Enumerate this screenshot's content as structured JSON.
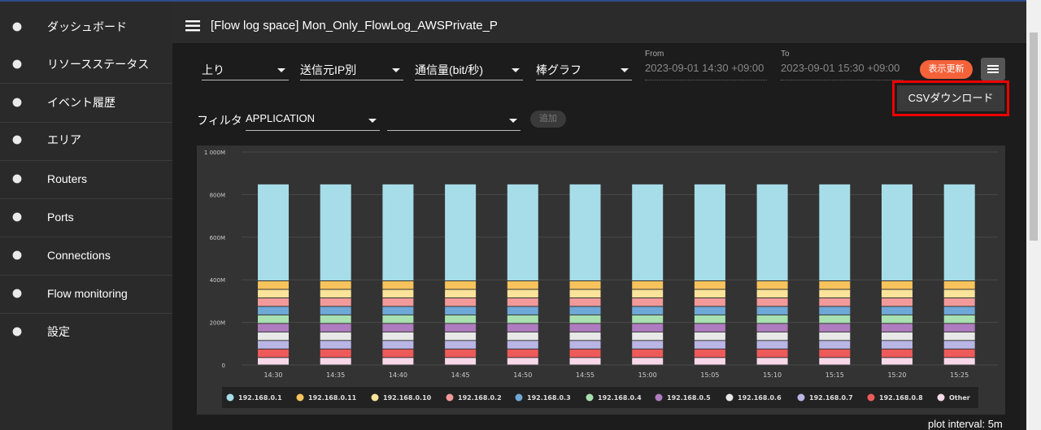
{
  "sidebar": {
    "items": [
      "ダッシュボード",
      "リソースステータス",
      "イベント履歴",
      "エリア",
      "Routers",
      "Ports",
      "Connections",
      "Flow monitoring",
      "設定"
    ]
  },
  "header": {
    "title": "[Flow log space] Mon_Only_FlowLog_AWSPrivate_P"
  },
  "controls": {
    "direction": "上り",
    "group": "送信元IP別",
    "metric": "通信量(bit/秒)",
    "chart_kind": "棒グラフ",
    "from_label": "From",
    "from": "2023-09-01 14:30 +09:00",
    "to_label": "To",
    "to": "2023-09-01 15:30 +09:00",
    "refresh": "表示更新",
    "menu_item": "CSVダウンロード",
    "filter_label": "フィルタ",
    "filter_value": "APPLICATION",
    "add": "追加"
  },
  "chart_data": {
    "type": "stacked_bar",
    "categories": [
      "14:30",
      "14:35",
      "14:40",
      "14:45",
      "14:50",
      "14:55",
      "15:00",
      "15:05",
      "15:10",
      "15:15",
      "15:20",
      "15:25"
    ],
    "ylim": [
      0,
      1000
    ],
    "yticks": [
      0,
      {
        "value": 200,
        "label": "200M"
      },
      {
        "value": 400,
        "label": "400M"
      },
      {
        "value": 600,
        "label": "600M"
      },
      {
        "value": 800,
        "label": "800M"
      },
      {
        "value": 1000,
        "label": "1 000M"
      }
    ],
    "grid": true,
    "series": [
      {
        "name": "192.168.0.1",
        "color": "#a6dde8",
        "values": [
          455,
          455,
          455,
          455,
          455,
          455,
          455,
          455,
          455,
          455,
          455,
          455
        ]
      },
      {
        "name": "192.168.0.11",
        "color": "#f7c35c",
        "values": [
          40,
          40,
          40,
          40,
          40,
          40,
          40,
          40,
          40,
          40,
          40,
          40
        ]
      },
      {
        "name": "192.168.0.10",
        "color": "#fbe49a",
        "values": [
          40,
          40,
          40,
          40,
          40,
          40,
          40,
          40,
          40,
          40,
          40,
          40
        ]
      },
      {
        "name": "192.168.0.2",
        "color": "#f29a9a",
        "values": [
          40,
          40,
          40,
          40,
          40,
          40,
          40,
          40,
          40,
          40,
          40,
          40
        ]
      },
      {
        "name": "192.168.0.3",
        "color": "#6fa8d6",
        "values": [
          40,
          40,
          40,
          40,
          40,
          40,
          40,
          40,
          40,
          40,
          40,
          40
        ]
      },
      {
        "name": "192.168.0.4",
        "color": "#a8e0b0",
        "values": [
          40,
          40,
          40,
          40,
          40,
          40,
          40,
          40,
          40,
          40,
          40,
          40
        ]
      },
      {
        "name": "192.168.0.5",
        "color": "#b07cc0",
        "values": [
          40,
          40,
          40,
          40,
          40,
          40,
          40,
          40,
          40,
          40,
          40,
          40
        ]
      },
      {
        "name": "192.168.0.6",
        "color": "#e8e8e8",
        "values": [
          40,
          40,
          40,
          40,
          40,
          40,
          40,
          40,
          40,
          40,
          40,
          40
        ]
      },
      {
        "name": "192.168.0.7",
        "color": "#b9b6e6",
        "values": [
          40,
          40,
          40,
          40,
          40,
          40,
          40,
          40,
          40,
          40,
          40,
          40
        ]
      },
      {
        "name": "192.168.0.8",
        "color": "#ee5a5a",
        "values": [
          40,
          40,
          40,
          40,
          40,
          40,
          40,
          40,
          40,
          40,
          40,
          40
        ]
      },
      {
        "name": "Other",
        "color": "#f8d9ea",
        "values": [
          35,
          35,
          35,
          35,
          35,
          35,
          35,
          35,
          35,
          35,
          35,
          35
        ]
      }
    ]
  },
  "footer": {
    "plot_interval": "plot interval: 5m"
  }
}
